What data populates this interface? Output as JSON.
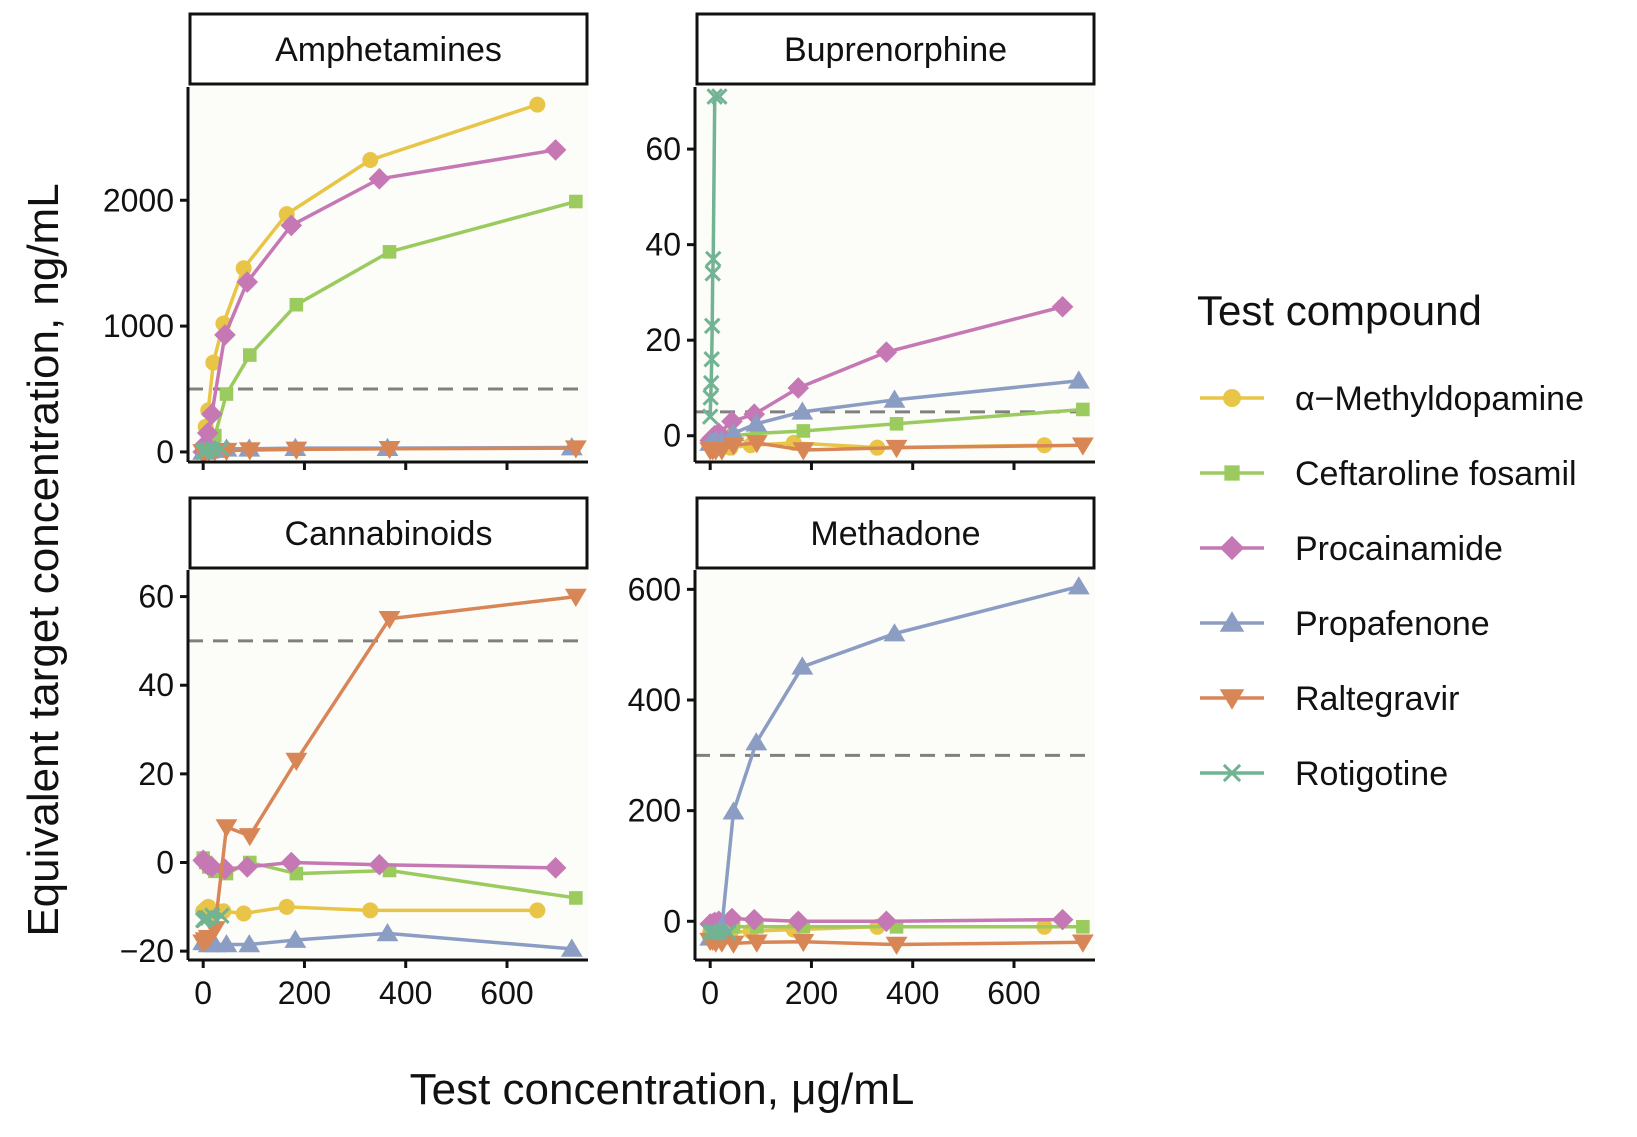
{
  "chart_data": {
    "type": "line",
    "layout": "faceted 2x2 small multiples",
    "xlabel": "Test concentration, μg/mL",
    "ylabel": "Equivalent target concentration, ng/mL",
    "xlim": [
      -30,
      760
    ],
    "xticks": [
      0,
      200,
      400,
      600
    ],
    "xtick_labels": [
      "0",
      "200",
      "400",
      "600"
    ],
    "legend": {
      "title": "Test compound",
      "position": "right",
      "entries": [
        "α−Methyldopamine",
        "Ceftaroline fosamil",
        "Procainamide",
        "Propafenone",
        "Raltegravir",
        "Rotigotine"
      ]
    },
    "series_style": [
      {
        "name": "α−Methyldopamine",
        "color": "#E8C547",
        "marker": "circle"
      },
      {
        "name": "Ceftaroline fosamil",
        "color": "#9BCB5F",
        "marker": "square"
      },
      {
        "name": "Procainamide",
        "color": "#C578B4",
        "marker": "diamond"
      },
      {
        "name": "Propafenone",
        "color": "#8C9DC4",
        "marker": "triangle-up"
      },
      {
        "name": "Raltegravir",
        "color": "#D98657",
        "marker": "triangle-down"
      },
      {
        "name": "Rotigotine",
        "color": "#72B394",
        "marker": "x"
      }
    ],
    "panels": [
      {
        "title": "Amphetamines",
        "ylim": [
          -80,
          2900
        ],
        "yticks": [
          0,
          1000,
          2000
        ],
        "ytick_labels": [
          "0",
          "1000",
          "2000"
        ],
        "cutoff": 500,
        "series": [
          {
            "name": "α−Methyldopamine",
            "x": [
              0,
              5,
              10,
              20,
              40,
              80,
              165,
              330,
              660
            ],
            "y": [
              0,
              200,
              330,
              710,
              1020,
              1460,
              1890,
              2320,
              2760
            ]
          },
          {
            "name": "Ceftaroline fosamil",
            "x": [
              0,
              5,
              10,
              23,
              46,
              92,
              184,
              368,
              736
            ],
            "y": [
              0,
              20,
              60,
              130,
              460,
              770,
              1170,
              1590,
              1990
            ]
          },
          {
            "name": "Procainamide",
            "x": [
              0,
              4,
              9,
              17,
              43,
              87,
              174,
              348,
              696
            ],
            "y": [
              0,
              60,
              150,
              300,
              930,
              1350,
              1800,
              2170,
              2400
            ]
          },
          {
            "name": "Propafenone",
            "x": [
              0,
              5,
              11,
              23,
              46,
              91,
              182,
              364,
              728
            ],
            "y": [
              0,
              5,
              10,
              15,
              25,
              25,
              30,
              30,
              35
            ]
          },
          {
            "name": "Raltegravir",
            "x": [
              0,
              5,
              11,
              23,
              46,
              92,
              184,
              368,
              736
            ],
            "y": [
              0,
              3,
              5,
              8,
              10,
              15,
              20,
              25,
              30
            ]
          },
          {
            "name": "Rotigotine",
            "x": [
              0,
              2,
              4,
              9,
              18,
              36
            ],
            "y": [
              0,
              5,
              10,
              15,
              20,
              25
            ]
          }
        ]
      },
      {
        "title": "Buprenorphine",
        "ylim": [
          -5.5,
          73
        ],
        "yticks": [
          0,
          20,
          40,
          60
        ],
        "ytick_labels": [
          "0",
          "20",
          "40",
          "60"
        ],
        "cutoff": 5,
        "series": [
          {
            "name": "α−Methyldopamine",
            "x": [
              0,
              5,
              10,
              20,
              40,
              80,
              165,
              330,
              660
            ],
            "y": [
              -2,
              -2,
              -2.5,
              -2.5,
              -2.5,
              -2,
              -1.5,
              -2.5,
              -2
            ]
          },
          {
            "name": "Ceftaroline fosamil",
            "x": [
              0,
              5,
              11,
              23,
              46,
              92,
              184,
              368,
              736
            ],
            "y": [
              -1.5,
              -1.5,
              -1,
              -1,
              0,
              0.5,
              1,
              2.5,
              5.5
            ]
          },
          {
            "name": "Procainamide",
            "x": [
              0,
              4,
              9,
              17,
              43,
              87,
              174,
              348,
              696
            ],
            "y": [
              -1,
              -0.5,
              0,
              0.5,
              3,
              4.5,
              10,
              17.5,
              27
            ]
          },
          {
            "name": "Propafenone",
            "x": [
              0,
              5,
              11,
              23,
              46,
              91,
              182,
              364,
              728
            ],
            "y": [
              -1.5,
              -1.5,
              -1,
              -1,
              0.5,
              2.5,
              5,
              7.5,
              11.5
            ]
          },
          {
            "name": "Raltegravir",
            "x": [
              0,
              5,
              11,
              23,
              46,
              92,
              184,
              368,
              736
            ],
            "y": [
              -3,
              -3,
              -3,
              -3,
              -2,
              -1.5,
              -3,
              -2.5,
              -2
            ]
          },
          {
            "name": "Rotigotine",
            "x": [
              0,
              1,
              2,
              3,
              4,
              5,
              6,
              9,
              18
            ],
            "y": [
              4,
              8,
              11,
              16,
              23,
              34,
              37,
              71,
              71
            ]
          }
        ]
      },
      {
        "title": "Cannabinoids",
        "ylim": [
          -22,
          66
        ],
        "yticks": [
          -20,
          0,
          20,
          40,
          60
        ],
        "ytick_labels": [
          "−20",
          "0",
          "20",
          "40",
          "60"
        ],
        "cutoff": 50,
        "series": [
          {
            "name": "α−Methyldopamine",
            "x": [
              0,
              5,
              10,
              20,
              40,
              80,
              165,
              330,
              660
            ],
            "y": [
              -11,
              -10.5,
              -10,
              -11.5,
              -11,
              -11.5,
              -10,
              -10.8,
              -10.8
            ]
          },
          {
            "name": "Ceftaroline fosamil",
            "x": [
              0,
              5,
              11,
              23,
              46,
              92,
              184,
              368,
              736
            ],
            "y": [
              1,
              0,
              -1,
              -2,
              -2.5,
              0,
              -2.5,
              -1.8,
              -8
            ]
          },
          {
            "name": "Procainamide",
            "x": [
              0,
              4,
              9,
              17,
              43,
              87,
              174,
              348,
              696
            ],
            "y": [
              0.5,
              0,
              -0.5,
              -1,
              -1.5,
              -1,
              0,
              -0.5,
              -1.2
            ]
          },
          {
            "name": "Propafenone",
            "x": [
              0,
              5,
              11,
              23,
              46,
              91,
              182,
              364,
              728
            ],
            "y": [
              -18,
              -18,
              -18.5,
              -18.5,
              -18.5,
              -18.5,
              -17.5,
              -16,
              -19.5
            ]
          },
          {
            "name": "Raltegravir",
            "x": [
              0,
              5,
              11,
              23,
              46,
              92,
              184,
              368,
              736
            ],
            "y": [
              -18,
              -17.5,
              -17,
              -15,
              8,
              6,
              23,
              55,
              60
            ]
          },
          {
            "name": "Rotigotine",
            "x": [
              0,
              2,
              4,
              9,
              18,
              36
            ],
            "y": [
              -13,
              -13,
              -12.5,
              -12.5,
              -12,
              -12
            ]
          }
        ]
      },
      {
        "title": "Methadone",
        "ylim": [
          -70,
          635
        ],
        "yticks": [
          0,
          200,
          400,
          600
        ],
        "ytick_labels": [
          "0",
          "200",
          "400",
          "600"
        ],
        "cutoff": 300,
        "series": [
          {
            "name": "α−Methyldopamine",
            "x": [
              0,
              5,
              10,
              20,
              40,
              80,
              165,
              330,
              660
            ],
            "y": [
              -20,
              -20,
              -20,
              -20,
              -20,
              -18,
              -15,
              -10,
              -10
            ]
          },
          {
            "name": "Ceftaroline fosamil",
            "x": [
              0,
              5,
              11,
              23,
              46,
              92,
              184,
              368,
              736
            ],
            "y": [
              -10,
              -10,
              -10,
              -10,
              -10,
              -10,
              -10,
              -10,
              -10
            ]
          },
          {
            "name": "Procainamide",
            "x": [
              0,
              4,
              9,
              17,
              43,
              87,
              174,
              348,
              696
            ],
            "y": [
              -5,
              -5,
              -2,
              0,
              5,
              3,
              0,
              0,
              3
            ]
          },
          {
            "name": "Propafenone",
            "x": [
              0,
              5,
              11,
              23,
              46,
              91,
              182,
              364,
              728
            ],
            "y": [
              -30,
              -25,
              -20,
              -10,
              198,
              323,
              460,
              520,
              605
            ]
          },
          {
            "name": "Raltegravir",
            "x": [
              0,
              5,
              11,
              23,
              46,
              92,
              184,
              368,
              736
            ],
            "y": [
              -35,
              -35,
              -38,
              -38,
              -40,
              -38,
              -37,
              -42,
              -38
            ]
          },
          {
            "name": "Rotigotine",
            "x": [
              0,
              2,
              4,
              9,
              18,
              36
            ],
            "y": [
              -20,
              -20,
              -20,
              -20,
              -20,
              -20
            ]
          }
        ]
      }
    ]
  }
}
